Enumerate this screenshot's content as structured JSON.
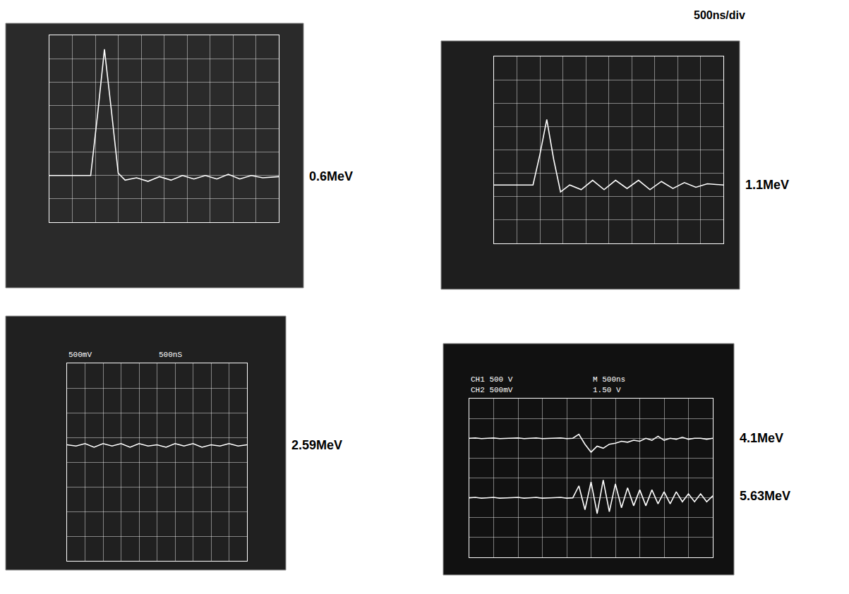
{
  "chart_data": [
    {
      "type": "line",
      "x": [
        0,
        1,
        1.8,
        2.1,
        2.4,
        2.7,
        3.0,
        3.3,
        3.8,
        4.3,
        4.8,
        5.3,
        5.8,
        6.3,
        6.8,
        7.3,
        7.8,
        8.3,
        8.8,
        9.3,
        10
      ],
      "series": [
        {
          "name": "0.6MeV",
          "color": "#ffffff",
          "values": [
            2,
            2,
            2,
            4.6,
            7.4,
            4.8,
            2.1,
            1.8,
            1.9,
            1.75,
            1.95,
            1.8,
            2.0,
            1.85,
            2.0,
            1.85,
            2.05,
            1.85,
            2.0,
            1.9,
            1.95
          ]
        }
      ],
      "xlim": [
        0,
        10
      ],
      "ylim": [
        0,
        8
      ],
      "xticks": [
        0,
        1,
        2,
        3,
        4,
        5,
        6,
        7,
        8,
        9,
        10
      ],
      "yticks": [
        0,
        1,
        2,
        3,
        4,
        5,
        6,
        7,
        8
      ],
      "grid": true,
      "tick_labels": false
    },
    {
      "type": "line",
      "title": "500ns/div",
      "x": [
        0,
        1,
        1.7,
        2.0,
        2.3,
        2.6,
        2.9,
        3.3,
        3.8,
        4.3,
        4.8,
        5.3,
        5.8,
        6.3,
        6.8,
        7.3,
        7.8,
        8.3,
        8.8,
        9.3,
        10
      ],
      "series": [
        {
          "name": "1.1MeV",
          "color": "#ffffff",
          "values": [
            2.5,
            2.5,
            2.5,
            3.8,
            5.3,
            3.6,
            2.2,
            2.5,
            2.3,
            2.7,
            2.3,
            2.7,
            2.35,
            2.7,
            2.3,
            2.65,
            2.35,
            2.6,
            2.4,
            2.55,
            2.5
          ]
        }
      ],
      "xlim": [
        0,
        10
      ],
      "ylim": [
        0,
        8
      ],
      "xticks": [
        0,
        1,
        2,
        3,
        4,
        5,
        6,
        7,
        8,
        9,
        10
      ],
      "yticks": [
        0,
        1,
        2,
        3,
        4,
        5,
        6,
        7,
        8
      ],
      "grid": true,
      "tick_labels": false
    },
    {
      "type": "line",
      "annotations": [
        "500mV",
        "500nS"
      ],
      "x": [
        0,
        0.5,
        1,
        1.5,
        2,
        2.5,
        3,
        3.5,
        4,
        4.5,
        5,
        5.5,
        6,
        6.5,
        7,
        7.5,
        8,
        8.5,
        9,
        9.5,
        10
      ],
      "series": [
        {
          "name": "2.59MeV",
          "color": "#ffffff",
          "values": [
            4.7,
            4.65,
            4.75,
            4.6,
            4.75,
            4.65,
            4.75,
            4.6,
            4.75,
            4.65,
            4.7,
            4.6,
            4.75,
            4.65,
            4.75,
            4.6,
            4.7,
            4.65,
            4.75,
            4.65,
            4.7
          ]
        }
      ],
      "xlim": [
        0,
        10
      ],
      "ylim": [
        0,
        8
      ],
      "xticks": [
        0,
        1,
        2,
        3,
        4,
        5,
        6,
        7,
        8,
        9,
        10
      ],
      "yticks": [
        0,
        1,
        2,
        3,
        4,
        5,
        6,
        7,
        8
      ],
      "grid": true,
      "tick_labels": false
    },
    {
      "type": "line",
      "annotations": [
        "CH1 500 V",
        "M 500ns",
        "CH2 500mV",
        "1.50 V"
      ],
      "x": [
        0,
        0.25,
        0.5,
        0.75,
        1,
        1.25,
        1.5,
        1.75,
        2,
        2.25,
        2.5,
        2.75,
        3,
        3.25,
        3.5,
        3.75,
        4,
        4.25,
        4.5,
        4.75,
        5,
        5.25,
        5.5,
        5.75,
        6,
        6.25,
        6.5,
        6.75,
        7,
        7.25,
        7.5,
        7.75,
        8,
        8.25,
        8.5,
        8.75,
        9,
        9.25,
        9.5,
        9.75,
        10
      ],
      "series": [
        {
          "name": "4.1MeV",
          "color": "#ffffff",
          "values": [
            6.0,
            6.02,
            5.98,
            6.0,
            6.02,
            5.98,
            6.0,
            6.0,
            6.02,
            5.98,
            6.0,
            6.02,
            5.98,
            6.0,
            6.0,
            6.02,
            5.98,
            6.0,
            6.2,
            5.7,
            5.3,
            5.6,
            5.5,
            5.7,
            5.75,
            5.85,
            5.8,
            5.9,
            5.85,
            6.0,
            5.9,
            6.1,
            5.9,
            6.0,
            5.95,
            6.05,
            5.95,
            6.0,
            6.0,
            5.95,
            6.0
          ]
        },
        {
          "name": "5.63MeV",
          "color": "#ffffff",
          "values": [
            3.0,
            3.02,
            2.98,
            3.0,
            3.02,
            2.98,
            3.0,
            3.0,
            3.02,
            2.98,
            3.0,
            3.02,
            2.98,
            3.0,
            3.0,
            3.02,
            2.98,
            3.0,
            3.6,
            2.4,
            3.8,
            2.2,
            3.9,
            2.3,
            3.7,
            2.5,
            3.5,
            2.6,
            3.4,
            2.6,
            3.4,
            2.7,
            3.3,
            2.7,
            3.3,
            2.8,
            3.2,
            2.8,
            3.2,
            2.8,
            3.1
          ]
        }
      ],
      "xlim": [
        0,
        10
      ],
      "ylim": [
        0,
        8
      ],
      "xticks": [
        0,
        1,
        2,
        3,
        4,
        5,
        6,
        7,
        8,
        9,
        10
      ],
      "yticks": [
        0,
        1,
        2,
        3,
        4,
        5,
        6,
        7,
        8
      ],
      "grid": true,
      "tick_labels": false
    }
  ]
}
